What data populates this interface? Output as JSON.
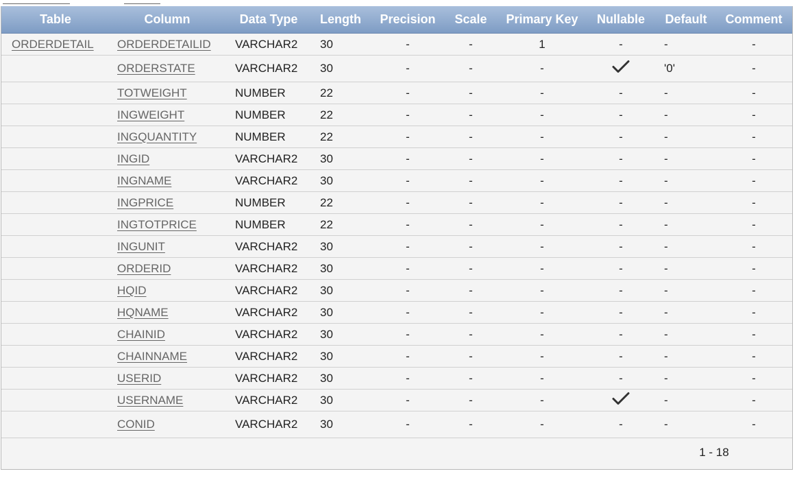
{
  "columns": [
    "Table",
    "Column",
    "Data Type",
    "Length",
    "Precision",
    "Scale",
    "Primary Key",
    "Nullable",
    "Default",
    "Comment"
  ],
  "rows": [
    {
      "table": "ORDERDETAIL",
      "column": "ORDERDETAILID",
      "type": "VARCHAR2",
      "length": "30",
      "precision": "-",
      "scale": "-",
      "pk": "1",
      "nullable": "-",
      "default": "-",
      "comment": "-"
    },
    {
      "table": "",
      "column": "ORDERSTATE",
      "type": "VARCHAR2",
      "length": "30",
      "precision": "-",
      "scale": "-",
      "pk": "-",
      "nullable": "check",
      "default": "'0'",
      "comment": "-"
    },
    {
      "table": "",
      "column": "TOTWEIGHT",
      "type": "NUMBER",
      "length": "22",
      "precision": "-",
      "scale": "-",
      "pk": "-",
      "nullable": "-",
      "default": "-",
      "comment": "-"
    },
    {
      "table": "",
      "column": "INGWEIGHT",
      "type": "NUMBER",
      "length": "22",
      "precision": "-",
      "scale": "-",
      "pk": "-",
      "nullable": "-",
      "default": "-",
      "comment": "-"
    },
    {
      "table": "",
      "column": "INGQUANTITY",
      "type": "NUMBER",
      "length": "22",
      "precision": "-",
      "scale": "-",
      "pk": "-",
      "nullable": "-",
      "default": "-",
      "comment": "-"
    },
    {
      "table": "",
      "column": "INGID",
      "type": "VARCHAR2",
      "length": "30",
      "precision": "-",
      "scale": "-",
      "pk": "-",
      "nullable": "-",
      "default": "-",
      "comment": "-"
    },
    {
      "table": "",
      "column": "INGNAME",
      "type": "VARCHAR2",
      "length": "30",
      "precision": "-",
      "scale": "-",
      "pk": "-",
      "nullable": "-",
      "default": "-",
      "comment": "-"
    },
    {
      "table": "",
      "column": "INGPRICE",
      "type": "NUMBER",
      "length": "22",
      "precision": "-",
      "scale": "-",
      "pk": "-",
      "nullable": "-",
      "default": "-",
      "comment": "-"
    },
    {
      "table": "",
      "column": "INGTOTPRICE",
      "type": "NUMBER",
      "length": "22",
      "precision": "-",
      "scale": "-",
      "pk": "-",
      "nullable": "-",
      "default": "-",
      "comment": "-"
    },
    {
      "table": "",
      "column": "INGUNIT",
      "type": "VARCHAR2",
      "length": "30",
      "precision": "-",
      "scale": "-",
      "pk": "-",
      "nullable": "-",
      "default": "-",
      "comment": "-"
    },
    {
      "table": "",
      "column": "ORDERID",
      "type": "VARCHAR2",
      "length": "30",
      "precision": "-",
      "scale": "-",
      "pk": "-",
      "nullable": "-",
      "default": "-",
      "comment": "-"
    },
    {
      "table": "",
      "column": "HQID",
      "type": "VARCHAR2",
      "length": "30",
      "precision": "-",
      "scale": "-",
      "pk": "-",
      "nullable": "-",
      "default": "-",
      "comment": "-"
    },
    {
      "table": "",
      "column": "HQNAME",
      "type": "VARCHAR2",
      "length": "30",
      "precision": "-",
      "scale": "-",
      "pk": "-",
      "nullable": "-",
      "default": "-",
      "comment": "-"
    },
    {
      "table": "",
      "column": "CHAINID",
      "type": "VARCHAR2",
      "length": "30",
      "precision": "-",
      "scale": "-",
      "pk": "-",
      "nullable": "-",
      "default": "-",
      "comment": "-"
    },
    {
      "table": "",
      "column": "CHAINNAME",
      "type": "VARCHAR2",
      "length": "30",
      "precision": "-",
      "scale": "-",
      "pk": "-",
      "nullable": "-",
      "default": "-",
      "comment": "-"
    },
    {
      "table": "",
      "column": "USERID",
      "type": "VARCHAR2",
      "length": "30",
      "precision": "-",
      "scale": "-",
      "pk": "-",
      "nullable": "-",
      "default": "-",
      "comment": "-"
    },
    {
      "table": "",
      "column": "USERNAME",
      "type": "VARCHAR2",
      "length": "30",
      "precision": "-",
      "scale": "-",
      "pk": "-",
      "nullable": "check",
      "default": "-",
      "comment": "-"
    },
    {
      "table": "",
      "column": "CONID",
      "type": "VARCHAR2",
      "length": "30",
      "precision": "-",
      "scale": "-",
      "pk": "-",
      "nullable": "-",
      "default": "-",
      "comment": "-"
    }
  ],
  "pagination": "1 - 18",
  "colors": {
    "header_top": "#a9bfdc",
    "header_bottom": "#7e9cc4",
    "link": "#666666"
  }
}
